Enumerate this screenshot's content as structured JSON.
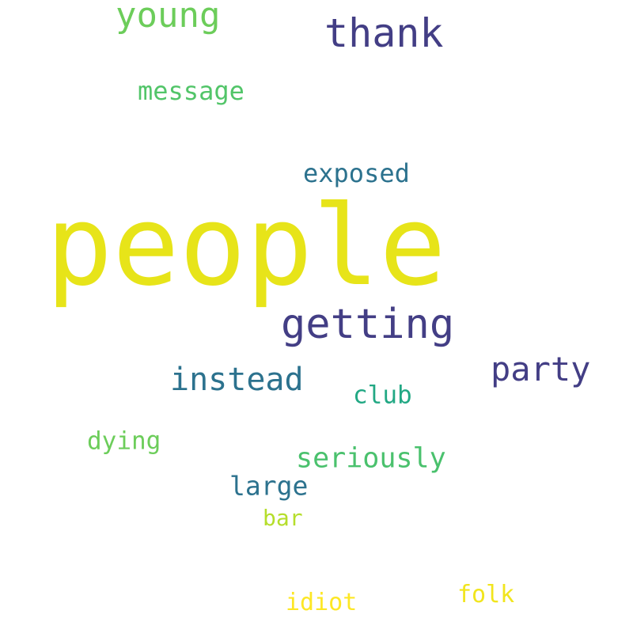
{
  "words": {
    "people": {
      "text": "people",
      "color": "#e7e419"
    },
    "getting": {
      "text": "getting",
      "color": "#433e85"
    },
    "thank": {
      "text": "thank",
      "color": "#433e85"
    },
    "young": {
      "text": "young",
      "color": "#6ccd5a"
    },
    "party": {
      "text": "party",
      "color": "#433e85"
    },
    "instead": {
      "text": "instead",
      "color": "#2c728e"
    },
    "seriously": {
      "text": "seriously",
      "color": "#4ac16d"
    },
    "large": {
      "text": "large",
      "color": "#2c728e"
    },
    "message": {
      "text": "message",
      "color": "#52c569"
    },
    "exposed": {
      "text": "exposed",
      "color": "#2c728e"
    },
    "dying": {
      "text": "dying",
      "color": "#6ccd5a"
    },
    "club": {
      "text": "club",
      "color": "#22a884"
    },
    "idiot": {
      "text": "idiot",
      "color": "#fde725"
    },
    "folk": {
      "text": "folk",
      "color": "#f1e51d"
    },
    "bar": {
      "text": "bar",
      "color": "#b5de2b"
    }
  }
}
